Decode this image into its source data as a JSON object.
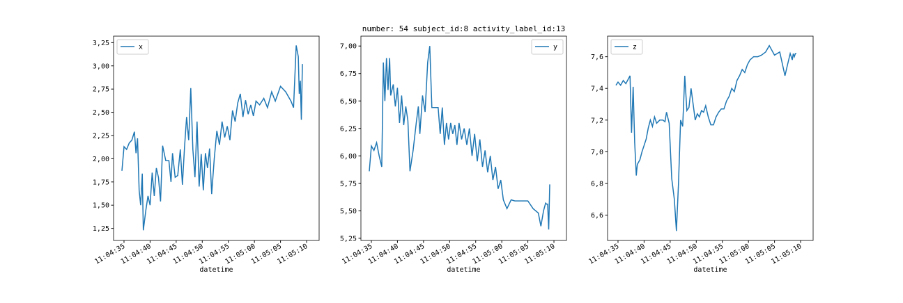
{
  "chart_data": [
    {
      "type": "line",
      "xlabel": "datetime",
      "legend": "upper left",
      "x": [
        34.6,
        35.0,
        35.5,
        36.0,
        36.5,
        37.0,
        37.3,
        37.6,
        37.9,
        38.2,
        38.5,
        38.7,
        39.2,
        39.6,
        40.0,
        40.4,
        40.8,
        41.2,
        41.6,
        42.0,
        42.4,
        43.0,
        43.6,
        44.0,
        44.3,
        44.8,
        45.3,
        45.8,
        46.2,
        46.6,
        47.0,
        47.4,
        47.8,
        48.2,
        48.6,
        49.0,
        49.4,
        49.8,
        50.2,
        50.6,
        51.0,
        51.4,
        51.8,
        52.3,
        52.8,
        53.3,
        53.8,
        54.3,
        54.8,
        55.3,
        55.8,
        56.3,
        56.8,
        57.3,
        57.8,
        58.3,
        58.8,
        59.3,
        59.8,
        60.3,
        61.0,
        61.8,
        62.5,
        63.3,
        64.0,
        65.0,
        66.0,
        67.0,
        67.5,
        68.0,
        68.4,
        68.6,
        68.8,
        69.0,
        69.2
      ],
      "xlim": [
        33.0,
        72.4
      ],
      "xticks": [
        {
          "value": 35,
          "label": "11:04:35"
        },
        {
          "value": 40,
          "label": "11:04:40"
        },
        {
          "value": 45,
          "label": "11:04:45"
        },
        {
          "value": 50,
          "label": "11:04:50"
        },
        {
          "value": 55,
          "label": "11:04:55"
        },
        {
          "value": 60,
          "label": "11:05:00"
        },
        {
          "value": 65,
          "label": "11:05:05"
        },
        {
          "value": 70,
          "label": "11:05:10"
        }
      ],
      "ylim": [
        1.12,
        3.32
      ],
      "yticks": [
        {
          "value": 1.25,
          "label": "1,25"
        },
        {
          "value": 1.5,
          "label": "1,50"
        },
        {
          "value": 1.75,
          "label": "1,75"
        },
        {
          "value": 2.0,
          "label": "2,00"
        },
        {
          "value": 2.25,
          "label": "2,25"
        },
        {
          "value": 2.5,
          "label": "2,50"
        },
        {
          "value": 2.75,
          "label": "2,75"
        },
        {
          "value": 3.0,
          "label": "3,00"
        },
        {
          "value": 3.25,
          "label": "3,25"
        }
      ],
      "series": [
        {
          "name": "x",
          "color": "#1f77b4",
          "values": [
            1.87,
            2.13,
            2.1,
            2.17,
            2.2,
            2.29,
            2.06,
            2.22,
            1.66,
            1.5,
            1.84,
            1.23,
            1.45,
            1.6,
            1.5,
            1.85,
            1.6,
            1.9,
            1.8,
            1.54,
            2.14,
            1.98,
            1.98,
            1.75,
            2.06,
            1.8,
            1.82,
            2.1,
            1.72,
            2.12,
            2.45,
            2.2,
            2.76,
            2.1,
            1.8,
            2.4,
            1.7,
            2.05,
            1.66,
            2.06,
            1.9,
            2.11,
            1.62,
            2.0,
            2.3,
            2.15,
            2.4,
            2.23,
            2.35,
            2.2,
            2.52,
            2.4,
            2.6,
            2.7,
            2.45,
            2.63,
            2.48,
            2.58,
            2.46,
            2.62,
            2.58,
            2.65,
            2.55,
            2.72,
            2.62,
            2.78,
            2.72,
            2.62,
            2.55,
            3.22,
            3.1,
            2.7,
            2.84,
            2.42,
            3.02
          ]
        }
      ]
    },
    {
      "type": "line",
      "title": "number: 54 subject_id:8 activity_label_id:13",
      "xlabel": "datetime",
      "legend": "upper right",
      "x": [
        34.6,
        35.0,
        35.5,
        36.0,
        36.5,
        37.0,
        37.3,
        37.6,
        37.9,
        38.2,
        38.5,
        38.7,
        39.2,
        39.6,
        40.0,
        40.4,
        40.8,
        41.2,
        41.6,
        42.0,
        42.4,
        43.0,
        43.6,
        44.0,
        44.3,
        44.8,
        45.3,
        45.8,
        46.2,
        46.6,
        47.0,
        47.4,
        47.8,
        48.2,
        48.6,
        49.0,
        49.4,
        49.8,
        50.2,
        50.6,
        51.0,
        51.4,
        51.8,
        52.3,
        52.8,
        53.3,
        53.8,
        54.3,
        54.8,
        55.3,
        55.8,
        56.3,
        56.8,
        57.3,
        57.8,
        58.3,
        58.8,
        59.3,
        59.8,
        60.3,
        61.0,
        61.8,
        62.5,
        63.3,
        64.0,
        65.0,
        66.0,
        67.0,
        67.5,
        68.0,
        68.4,
        68.6,
        68.8,
        69.0,
        69.2
      ],
      "xlim": [
        33.0,
        72.4
      ],
      "xticks": [
        {
          "value": 35,
          "label": "11:04:35"
        },
        {
          "value": 40,
          "label": "11:04:40"
        },
        {
          "value": 45,
          "label": "11:04:45"
        },
        {
          "value": 50,
          "label": "11:04:50"
        },
        {
          "value": 55,
          "label": "11:04:55"
        },
        {
          "value": 60,
          "label": "11:05:00"
        },
        {
          "value": 65,
          "label": "11:05:05"
        },
        {
          "value": 70,
          "label": "11:05:10"
        }
      ],
      "ylim": [
        5.23,
        7.09
      ],
      "yticks": [
        {
          "value": 5.25,
          "label": "5,25"
        },
        {
          "value": 5.5,
          "label": "5,50"
        },
        {
          "value": 5.75,
          "label": "5,75"
        },
        {
          "value": 6.0,
          "label": "6,00"
        },
        {
          "value": 6.25,
          "label": "6,25"
        },
        {
          "value": 6.5,
          "label": "6,50"
        },
        {
          "value": 6.75,
          "label": "6,75"
        },
        {
          "value": 7.0,
          "label": "7,00"
        }
      ],
      "series": [
        {
          "name": "y",
          "color": "#1f77b4",
          "values": [
            5.86,
            6.09,
            6.05,
            6.12,
            6.0,
            5.9,
            6.85,
            6.5,
            6.89,
            6.6,
            6.89,
            6.55,
            6.65,
            6.45,
            6.62,
            6.3,
            6.55,
            6.28,
            6.45,
            6.32,
            5.86,
            6.05,
            6.3,
            6.45,
            6.2,
            6.55,
            6.4,
            6.85,
            7.0,
            6.44,
            6.44,
            6.44,
            6.44,
            6.2,
            6.44,
            6.1,
            6.3,
            6.15,
            6.3,
            6.2,
            6.28,
            6.1,
            6.3,
            6.15,
            6.25,
            6.1,
            6.25,
            6.0,
            6.2,
            5.95,
            6.15,
            5.9,
            6.05,
            5.85,
            6.0,
            5.78,
            5.9,
            5.7,
            5.78,
            5.6,
            5.52,
            5.6,
            5.59,
            5.59,
            5.59,
            5.59,
            5.52,
            5.48,
            5.36,
            5.5,
            5.57,
            5.56,
            5.56,
            5.33,
            5.74
          ]
        }
      ]
    },
    {
      "type": "line",
      "xlabel": "datetime",
      "legend": "upper left",
      "x": [
        34.6,
        35.0,
        35.5,
        36.0,
        36.5,
        37.0,
        37.3,
        37.6,
        37.9,
        38.2,
        38.5,
        38.7,
        39.2,
        39.6,
        40.0,
        40.4,
        40.8,
        41.2,
        41.6,
        42.0,
        42.4,
        43.0,
        43.6,
        44.0,
        44.3,
        44.8,
        45.3,
        45.8,
        46.2,
        46.6,
        47.0,
        47.4,
        47.8,
        48.2,
        48.6,
        49.0,
        49.4,
        49.8,
        50.2,
        50.6,
        51.0,
        51.4,
        51.8,
        52.3,
        52.8,
        53.3,
        53.8,
        54.3,
        54.8,
        55.3,
        55.8,
        56.3,
        56.8,
        57.3,
        57.8,
        58.3,
        58.8,
        59.3,
        59.8,
        60.3,
        61.0,
        61.8,
        62.5,
        63.3,
        64.0,
        65.0,
        66.0,
        67.0,
        67.5,
        68.0,
        68.4,
        68.6,
        68.8,
        69.0,
        69.2
      ],
      "xlim": [
        33.0,
        72.4
      ],
      "xticks": [
        {
          "value": 35,
          "label": "11:04:35"
        },
        {
          "value": 40,
          "label": "11:04:40"
        },
        {
          "value": 45,
          "label": "11:04:45"
        },
        {
          "value": 50,
          "label": "11:04:50"
        },
        {
          "value": 55,
          "label": "11:04:55"
        },
        {
          "value": 60,
          "label": "11:05:00"
        },
        {
          "value": 65,
          "label": "11:05:05"
        },
        {
          "value": 70,
          "label": "11:05:10"
        }
      ],
      "ylim": [
        6.44,
        7.73
      ],
      "yticks": [
        {
          "value": 6.6,
          "label": "6,6"
        },
        {
          "value": 6.8,
          "label": "6,8"
        },
        {
          "value": 7.0,
          "label": "7,0"
        },
        {
          "value": 7.2,
          "label": "7,2"
        },
        {
          "value": 7.4,
          "label": "7,4"
        },
        {
          "value": 7.6,
          "label": "7,6"
        }
      ],
      "series": [
        {
          "name": "z",
          "color": "#1f77b4",
          "values": [
            7.42,
            7.44,
            7.42,
            7.45,
            7.43,
            7.46,
            7.48,
            7.12,
            7.41,
            7.06,
            6.85,
            6.92,
            6.95,
            7.0,
            7.04,
            7.08,
            7.15,
            7.2,
            7.16,
            7.22,
            7.18,
            7.2,
            7.2,
            7.19,
            7.25,
            7.18,
            6.83,
            6.7,
            6.5,
            6.8,
            7.2,
            7.16,
            7.48,
            7.26,
            7.28,
            7.4,
            7.3,
            7.2,
            7.24,
            7.22,
            7.26,
            7.25,
            7.29,
            7.22,
            7.17,
            7.17,
            7.22,
            7.25,
            7.27,
            7.27,
            7.32,
            7.35,
            7.4,
            7.38,
            7.45,
            7.48,
            7.52,
            7.5,
            7.55,
            7.58,
            7.6,
            7.6,
            7.61,
            7.63,
            7.67,
            7.61,
            7.63,
            7.48,
            7.55,
            7.62,
            7.58,
            7.62,
            7.6,
            7.62,
            7.62
          ]
        }
      ]
    }
  ]
}
